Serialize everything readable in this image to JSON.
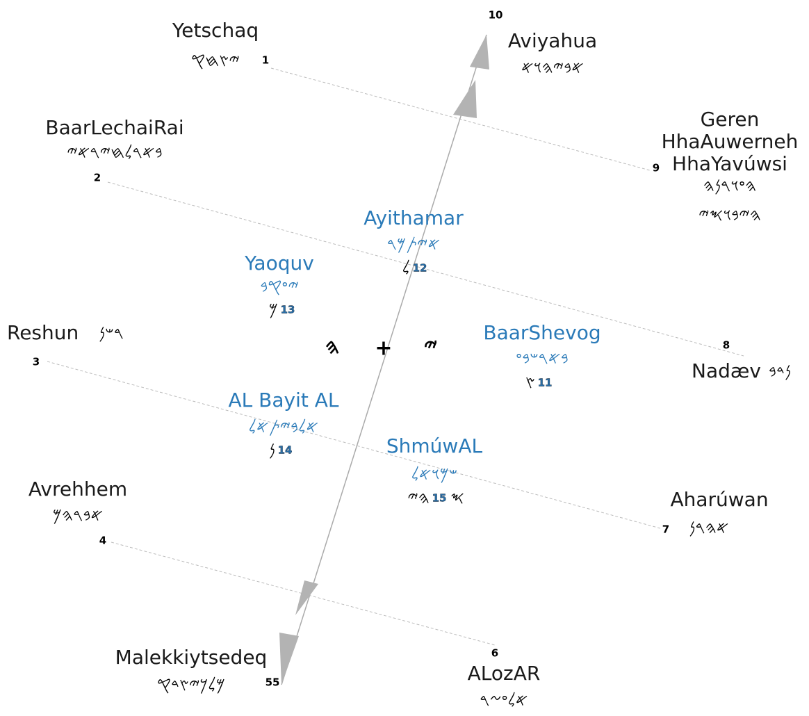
{
  "nodes": [
    {
      "name": "Yetschaq",
      "script": "𐤉𐤑𐤇𐤒",
      "number": "1"
    },
    {
      "name": "BaarLechaiRai",
      "script": "𐤁𐤀𐤓𐤋𐤇𐤉𐤓𐤀𐤉",
      "number": "2"
    },
    {
      "name": "Reshun",
      "script": "𐤓𐤔𐤍",
      "number": "3"
    },
    {
      "name": "Avrehhem",
      "script": "𐤀𐤁𐤓𐤄𐤌",
      "number": "4"
    },
    {
      "name": "Malekkiytsedeq",
      "script": "𐤌𐤋𐤊𐤉𐤑𐤃𐤒",
      "number": "55"
    },
    {
      "name": "ALozAR",
      "script": "𐤀𐤋𐤏𐤆𐤓",
      "number": "6"
    },
    {
      "name": "Aharúwan",
      "script": "𐤀𐤄𐤓𐤍",
      "number": "7"
    },
    {
      "name": "Nadæv",
      "script": "𐤍𐤃𐤁",
      "number": "8"
    },
    {
      "name": "Geren",
      "name2": "HhaAuwerneh",
      "name3": "HhaYavúwsi",
      "script": "𐤄𐤏𐤅𐤓𐤍𐤄",
      "script2": "𐤄𐤉𐤁𐤅𐤎𐤉",
      "number": "9"
    },
    {
      "name": "Aviyahua",
      "script": "𐤀𐤁𐤉𐤄𐤅𐤀",
      "number": "10"
    },
    {
      "name": "BaarShevog",
      "script": "𐤁𐤀𐤓𐤔𐤁𐤏",
      "number": "11",
      "prefix": "𐤑"
    },
    {
      "name": "Ayithamar",
      "script": "𐤀𐤉𐤕𐤌𐤓",
      "number": "12",
      "prefix": "𐤋"
    },
    {
      "name": "Yaoquv",
      "script": "𐤉𐤏𐤒𐤁",
      "number": "13",
      "prefix": "𐤌"
    },
    {
      "name": "AL Bayit AL",
      "script": "𐤀𐤋𐤁𐤉𐤕𐤀𐤋",
      "number": "14",
      "prefix": "𐤍"
    },
    {
      "name": "ShmúwAL",
      "script": "𐤔𐤌𐤅𐤀𐤋",
      "number": "15",
      "prefix": "𐤄𐤉",
      "suffix": "𐤎"
    }
  ],
  "center": {
    "left": "𐤄",
    "mid": "+",
    "right": "𐤉"
  }
}
